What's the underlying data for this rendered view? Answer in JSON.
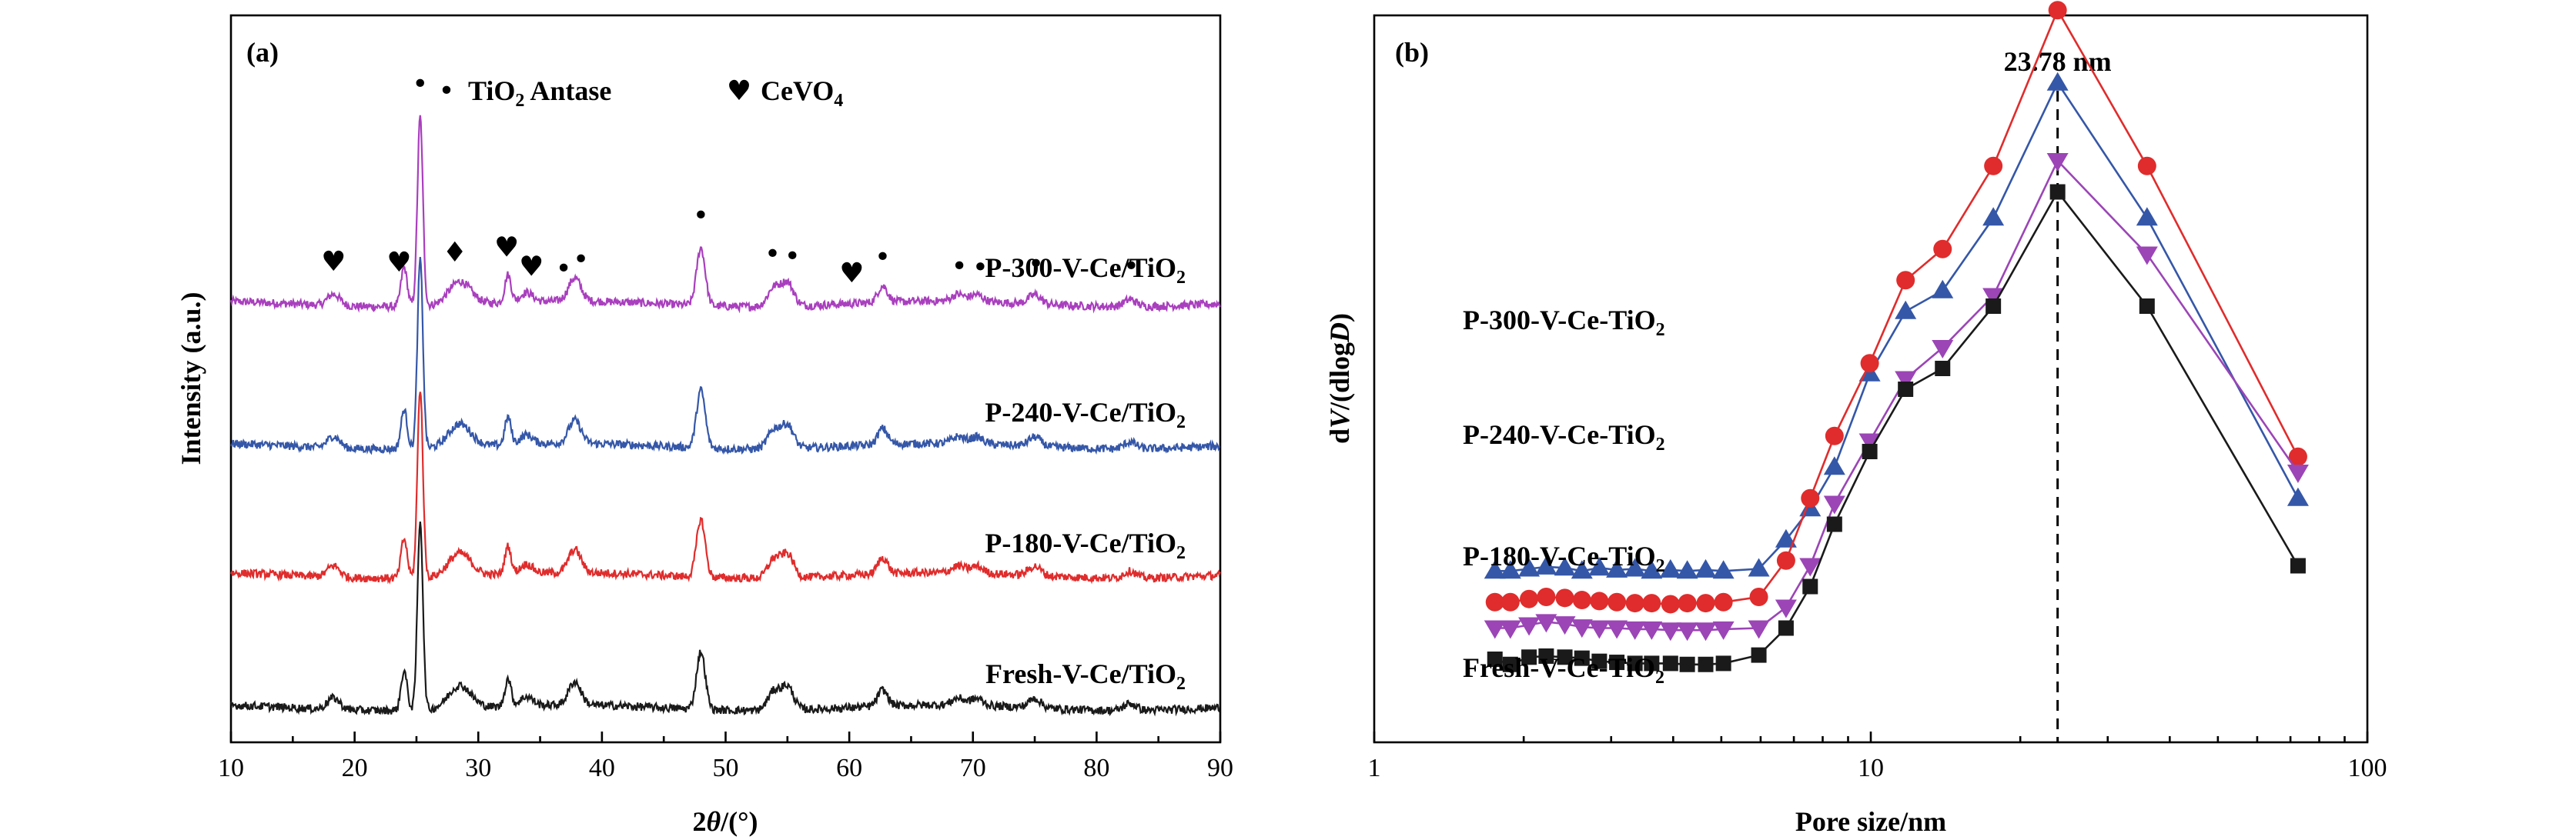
{
  "chart_data": [
    {
      "type": "line",
      "panel_label": "(a)",
      "xlabel": "2θ/(°)",
      "ylabel": "Intensity (a.u.)",
      "xlim": [
        10,
        90
      ],
      "xticks": [
        10,
        20,
        30,
        40,
        50,
        60,
        70,
        80,
        90
      ],
      "legend": [
        {
          "symbol": "•",
          "label": "TiO",
          "sub": "2",
          "label_after": " Antase"
        },
        {
          "symbol": "♥",
          "label": "CeVO",
          "sub": "4",
          "label_after": ""
        }
      ],
      "markers": [
        {
          "x": 25.3,
          "symbol": "•"
        },
        {
          "x": 18.3,
          "symbol": "♥"
        },
        {
          "x": 23.6,
          "symbol": "♥"
        },
        {
          "x": 28.1,
          "symbol": "♦"
        },
        {
          "x": 32.3,
          "symbol": "♥"
        },
        {
          "x": 34.3,
          "symbol": "♥"
        },
        {
          "x": 36.9,
          "symbol": "•"
        },
        {
          "x": 38.3,
          "symbol": "•"
        },
        {
          "x": 48.0,
          "symbol": "•"
        },
        {
          "x": 53.8,
          "symbol": "•"
        },
        {
          "x": 55.4,
          "symbol": "•"
        },
        {
          "x": 60.2,
          "symbol": "♥"
        },
        {
          "x": 62.7,
          "symbol": "•"
        },
        {
          "x": 68.9,
          "symbol": "•"
        },
        {
          "x": 70.6,
          "symbol": "•"
        },
        {
          "x": 75.1,
          "symbol": "•"
        },
        {
          "x": 82.8,
          "symbol": "•"
        }
      ],
      "peaks": [
        {
          "x": 18.3,
          "h": 0.05,
          "w": 0.5
        },
        {
          "x": 24.0,
          "h": 0.17,
          "w": 0.25
        },
        {
          "x": 25.3,
          "h": 0.82,
          "w": 0.22
        },
        {
          "x": 28.5,
          "h": 0.1,
          "w": 0.9
        },
        {
          "x": 32.4,
          "h": 0.12,
          "w": 0.25
        },
        {
          "x": 33.9,
          "h": 0.04,
          "w": 0.5
        },
        {
          "x": 37.8,
          "h": 0.1,
          "w": 0.5
        },
        {
          "x": 48.0,
          "h": 0.25,
          "w": 0.35
        },
        {
          "x": 53.9,
          "h": 0.08,
          "w": 0.5
        },
        {
          "x": 55.0,
          "h": 0.1,
          "w": 0.5
        },
        {
          "x": 62.7,
          "h": 0.07,
          "w": 0.4
        },
        {
          "x": 68.8,
          "h": 0.03,
          "w": 0.5
        },
        {
          "x": 70.3,
          "h": 0.03,
          "w": 0.5
        },
        {
          "x": 75.0,
          "h": 0.04,
          "w": 0.5
        },
        {
          "x": 82.7,
          "h": 0.03,
          "w": 0.5
        }
      ],
      "series": [
        {
          "name": "P-300-V-Ce/TiO",
          "sub": "2",
          "color": "#a93fbe",
          "offset": 3
        },
        {
          "name": "P-240-V-Ce/TiO",
          "sub": "2",
          "color": "#3557a8",
          "offset": 2
        },
        {
          "name": "P-180-V-Ce/TiO",
          "sub": "2",
          "color": "#e02c2c",
          "offset": 1
        },
        {
          "name": "Fresh-V-Ce/TiO",
          "sub": "2",
          "color": "#1a1a1a",
          "offset": 0
        }
      ]
    },
    {
      "type": "line",
      "panel_label": "(b)",
      "xlabel": "Pore size/nm",
      "ylabel": "dV/(dlogD)",
      "xscale": "log",
      "xlim": [
        1,
        100
      ],
      "xticks": [
        1,
        10,
        100
      ],
      "annotation": {
        "text": "23.78 nm",
        "x": 23.78
      },
      "x": [
        1.75,
        1.88,
        2.05,
        2.22,
        2.42,
        2.62,
        2.84,
        3.08,
        3.35,
        3.62,
        3.95,
        4.27,
        4.65,
        5.05,
        5.95,
        6.75,
        7.55,
        8.45,
        9.95,
        11.75,
        13.95,
        17.65,
        23.78,
        36.0,
        72.5
      ],
      "series": [
        {
          "name": "P-300-V-Ce-TiO",
          "sub": "2",
          "color": "#3557a8",
          "marker": "triangle-up",
          "values": [
            0.03,
            0.03,
            0.032,
            0.034,
            0.033,
            0.03,
            0.033,
            0.031,
            0.032,
            0.03,
            0.031,
            0.03,
            0.031,
            0.03,
            0.032,
            0.06,
            0.09,
            0.13,
            0.22,
            0.28,
            0.3,
            0.37,
            0.5,
            0.37,
            0.1
          ]
        },
        {
          "name": "P-240-V-Ce-TiO",
          "sub": "2",
          "color": "#e02c2c",
          "marker": "circle",
          "values": [
            0.03,
            0.03,
            0.033,
            0.035,
            0.034,
            0.032,
            0.031,
            0.03,
            0.029,
            0.029,
            0.028,
            0.029,
            0.029,
            0.03,
            0.035,
            0.07,
            0.13,
            0.19,
            0.26,
            0.34,
            0.37,
            0.45,
            0.6,
            0.45,
            0.17
          ]
        },
        {
          "name": "P-180-V-Ce-TiO",
          "sub": "2",
          "color": "#9b45b6",
          "marker": "triangle-down",
          "values": [
            0.03,
            0.03,
            0.033,
            0.036,
            0.034,
            0.031,
            0.03,
            0.03,
            0.029,
            0.029,
            0.028,
            0.028,
            0.028,
            0.029,
            0.03,
            0.05,
            0.09,
            0.15,
            0.21,
            0.27,
            0.3,
            0.35,
            0.48,
            0.39,
            0.18
          ]
        },
        {
          "name": "Fresh-V-Ce-TiO",
          "sub": "2",
          "color": "#1a1a1a",
          "marker": "square",
          "values": [
            0.03,
            0.025,
            0.032,
            0.033,
            0.032,
            0.031,
            0.028,
            0.027,
            0.026,
            0.026,
            0.026,
            0.025,
            0.025,
            0.026,
            0.034,
            0.06,
            0.1,
            0.16,
            0.23,
            0.29,
            0.31,
            0.37,
            0.48,
            0.37,
            0.12
          ]
        }
      ]
    }
  ]
}
